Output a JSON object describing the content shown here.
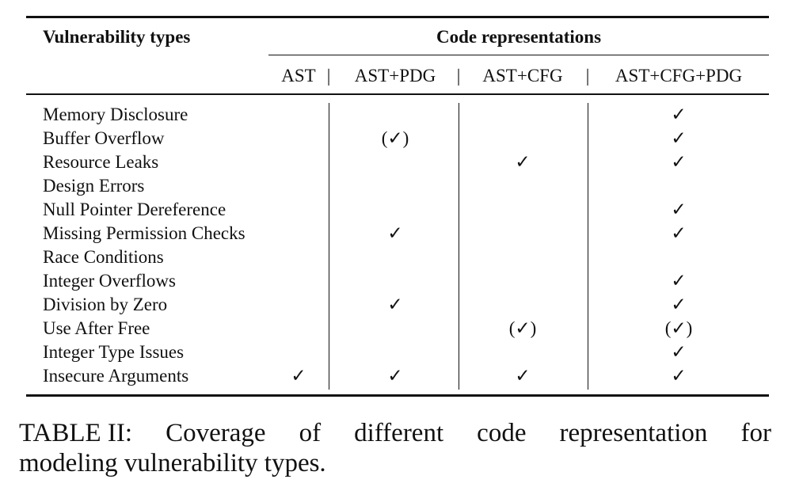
{
  "table": {
    "header": {
      "vulnerability_types": "Vulnerability types",
      "code_representations": "Code representations"
    },
    "columns": [
      "AST",
      "AST+PDG",
      "AST+CFG",
      "AST+CFG+PDG"
    ],
    "separator_glyph": "|",
    "rows": [
      {
        "label": "Memory Disclosure",
        "cells": [
          "",
          "",
          "",
          "✓"
        ]
      },
      {
        "label": "Buffer Overflow",
        "cells": [
          "",
          "(✓)",
          "",
          "✓"
        ]
      },
      {
        "label": "Resource Leaks",
        "cells": [
          "",
          "",
          "✓",
          "✓"
        ]
      },
      {
        "label": "Design Errors",
        "cells": [
          "",
          "",
          "",
          ""
        ]
      },
      {
        "label": "Null Pointer Dereference",
        "cells": [
          "",
          "",
          "",
          "✓"
        ]
      },
      {
        "label": "Missing Permission Checks",
        "cells": [
          "",
          "✓",
          "",
          "✓"
        ]
      },
      {
        "label": "Race Conditions",
        "cells": [
          "",
          "",
          "",
          ""
        ]
      },
      {
        "label": "Integer Overflows",
        "cells": [
          "",
          "",
          "",
          "✓"
        ]
      },
      {
        "label": "Division by Zero",
        "cells": [
          "",
          "✓",
          "",
          "✓"
        ]
      },
      {
        "label": "Use After Free",
        "cells": [
          "",
          "",
          "(✓)",
          "(✓)"
        ]
      },
      {
        "label": "Integer Type Issues",
        "cells": [
          "",
          "",
          "",
          "✓"
        ]
      },
      {
        "label": "Insecure Arguments",
        "cells": [
          "✓",
          "✓",
          "✓",
          "✓"
        ]
      }
    ]
  },
  "caption": {
    "label": "TABLE II:",
    "line1_words": [
      "Coverage",
      "of",
      "different",
      "code",
      "representation",
      "for"
    ],
    "line2": "modeling vulnerability types."
  }
}
